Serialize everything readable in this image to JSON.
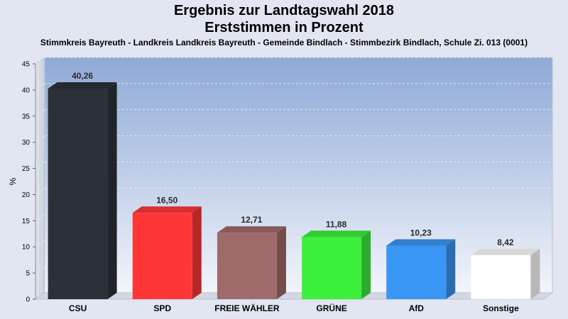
{
  "chart_data": {
    "type": "bar",
    "title": "Ergebnis zur Landtagswahl 2018",
    "subtitle": "Erststimmen in Prozent",
    "caption": "Stimmkreis Bayreuth - Landkreis Landkreis Bayreuth - Gemeinde Bindlach - Stimmbezirk Bindlach, Schule Zi. 013 (0001)",
    "ylabel": "%",
    "ylim": [
      0,
      45
    ],
    "yticks": [
      "0",
      "5",
      "10",
      "15",
      "20",
      "25",
      "30",
      "35",
      "40",
      "45"
    ],
    "categories": [
      "CSU",
      "SPD",
      "FREIE WÄHLER",
      "GRÜNE",
      "AfD",
      "Sonstige"
    ],
    "values": [
      40.26,
      16.5,
      12.71,
      11.88,
      10.23,
      8.42
    ],
    "value_labels": [
      "40,26",
      "16,50",
      "12,71",
      "11,88",
      "10,23",
      "8,42"
    ],
    "colors": [
      "#2c3038",
      "#ff3636",
      "#a06a6a",
      "#3cf03c",
      "#3a96f5",
      "#ffffff"
    ],
    "grid": true,
    "legend": "none"
  }
}
